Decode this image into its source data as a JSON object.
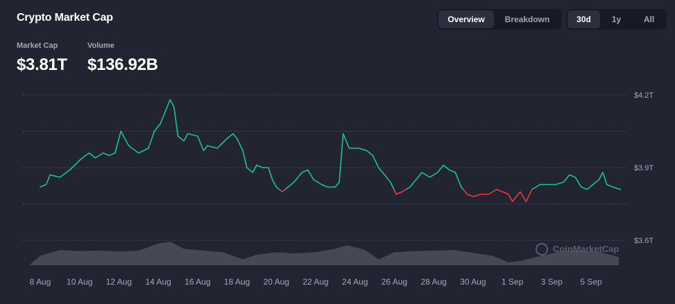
{
  "header": {
    "title": "Crypto Market Cap"
  },
  "view_tabs": [
    {
      "label": "Overview",
      "active": true
    },
    {
      "label": "Breakdown",
      "active": false
    }
  ],
  "range_tabs": [
    {
      "label": "30d",
      "active": true
    },
    {
      "label": "1y",
      "active": false
    },
    {
      "label": "All",
      "active": false
    }
  ],
  "stats": {
    "market_cap": {
      "label": "Market Cap",
      "value": "$3.81T"
    },
    "volume": {
      "label": "Volume",
      "value": "$136.92B"
    }
  },
  "watermark": "CoinMarketCap",
  "colors": {
    "background": "#222531",
    "up": "#16c784",
    "down": "#ea3943",
    "volume": "#4a4e5a",
    "grid": "#6b7080",
    "label": "#a1a7bb"
  },
  "chart_data": {
    "type": "line",
    "title": "",
    "xlabel": "",
    "ylabel": "",
    "ylim": [
      3.6,
      4.2
    ],
    "y_ticks": [
      {
        "value": 4.2,
        "label": "$4.2T"
      },
      {
        "value": 3.9,
        "label": "$3.9T"
      },
      {
        "value": 3.6,
        "label": "$3.6T"
      }
    ],
    "dotted_gridlines": [
      4.2,
      4.05,
      3.9,
      3.75,
      3.6
    ],
    "baseline_value": 3.81,
    "x_ticks": [
      {
        "day": 8,
        "label": "8 Aug"
      },
      {
        "day": 10,
        "label": "10 Aug"
      },
      {
        "day": 12,
        "label": "12 Aug"
      },
      {
        "day": 14,
        "label": "14 Aug"
      },
      {
        "day": 16,
        "label": "16 Aug"
      },
      {
        "day": 18,
        "label": "18 Aug"
      },
      {
        "day": 20,
        "label": "20 Aug"
      },
      {
        "day": 22,
        "label": "22 Aug"
      },
      {
        "day": 24,
        "label": "24 Aug"
      },
      {
        "day": 26,
        "label": "26 Aug"
      },
      {
        "day": 28,
        "label": "28 Aug"
      },
      {
        "day": 30,
        "label": "30 Aug"
      },
      {
        "day": 32,
        "label": "1 Sep"
      },
      {
        "day": 34,
        "label": "3 Sep"
      },
      {
        "day": 36,
        "label": "5 Sep"
      }
    ],
    "series": [
      {
        "values": [
          [
            8.0,
            3.82
          ],
          [
            8.3,
            3.83
          ],
          [
            8.5,
            3.87
          ],
          [
            9.0,
            3.86
          ],
          [
            9.5,
            3.89
          ],
          [
            10.0,
            3.93
          ],
          [
            10.3,
            3.95
          ],
          [
            10.5,
            3.96
          ],
          [
            10.8,
            3.94
          ],
          [
            11.2,
            3.96
          ],
          [
            11.5,
            3.95
          ],
          [
            11.8,
            3.96
          ],
          [
            12.1,
            4.05
          ],
          [
            12.5,
            3.99
          ],
          [
            13.0,
            3.96
          ],
          [
            13.5,
            3.98
          ],
          [
            13.8,
            4.05
          ],
          [
            14.1,
            4.08
          ],
          [
            14.3,
            4.12
          ],
          [
            14.5,
            4.16
          ],
          [
            14.6,
            4.18
          ],
          [
            14.8,
            4.15
          ],
          [
            15.0,
            4.03
          ],
          [
            15.3,
            4.01
          ],
          [
            15.5,
            4.04
          ],
          [
            16.0,
            4.03
          ],
          [
            16.3,
            3.97
          ],
          [
            16.5,
            3.99
          ],
          [
            17.0,
            3.98
          ],
          [
            17.5,
            4.02
          ],
          [
            17.8,
            4.04
          ],
          [
            18.0,
            4.02
          ],
          [
            18.3,
            3.97
          ],
          [
            18.5,
            3.9
          ],
          [
            18.8,
            3.88
          ],
          [
            19.0,
            3.91
          ],
          [
            19.3,
            3.9
          ],
          [
            19.6,
            3.9
          ],
          [
            19.8,
            3.85
          ],
          [
            20.0,
            3.82
          ],
          [
            20.3,
            3.8
          ],
          [
            20.6,
            3.82
          ],
          [
            20.9,
            3.84
          ],
          [
            21.3,
            3.88
          ],
          [
            21.6,
            3.89
          ],
          [
            21.9,
            3.85
          ],
          [
            22.3,
            3.83
          ],
          [
            22.6,
            3.82
          ],
          [
            23.0,
            3.82
          ],
          [
            23.2,
            3.84
          ],
          [
            23.4,
            4.04
          ],
          [
            23.7,
            3.98
          ],
          [
            24.2,
            3.98
          ],
          [
            24.6,
            3.97
          ],
          [
            24.9,
            3.95
          ],
          [
            25.2,
            3.9
          ],
          [
            25.5,
            3.87
          ],
          [
            25.8,
            3.84
          ],
          [
            26.1,
            3.79
          ],
          [
            26.4,
            3.8
          ],
          [
            26.8,
            3.82
          ],
          [
            27.1,
            3.85
          ],
          [
            27.4,
            3.88
          ],
          [
            27.8,
            3.86
          ],
          [
            28.2,
            3.88
          ],
          [
            28.5,
            3.91
          ],
          [
            28.8,
            3.89
          ],
          [
            29.1,
            3.88
          ],
          [
            29.4,
            3.82
          ],
          [
            29.7,
            3.79
          ],
          [
            30.0,
            3.78
          ],
          [
            30.4,
            3.79
          ],
          [
            30.8,
            3.79
          ],
          [
            31.2,
            3.81
          ],
          [
            31.5,
            3.8
          ],
          [
            31.8,
            3.79
          ],
          [
            32.0,
            3.76
          ],
          [
            32.4,
            3.8
          ],
          [
            32.7,
            3.76
          ],
          [
            33.0,
            3.81
          ],
          [
            33.4,
            3.83
          ],
          [
            33.8,
            3.83
          ],
          [
            34.2,
            3.83
          ],
          [
            34.6,
            3.84
          ],
          [
            34.9,
            3.87
          ],
          [
            35.2,
            3.86
          ],
          [
            35.5,
            3.82
          ],
          [
            35.8,
            3.81
          ],
          [
            36.1,
            3.83
          ],
          [
            36.4,
            3.85
          ],
          [
            36.6,
            3.88
          ],
          [
            36.8,
            3.83
          ],
          [
            37.1,
            3.82
          ],
          [
            37.5,
            3.81
          ]
        ]
      }
    ],
    "volume_profile": [
      [
        8.0,
        0.4
      ],
      [
        9.0,
        0.65
      ],
      [
        10.0,
        0.6
      ],
      [
        11.0,
        0.62
      ],
      [
        12.0,
        0.58
      ],
      [
        13.0,
        0.62
      ],
      [
        14.0,
        0.92
      ],
      [
        14.6,
        1.0
      ],
      [
        15.3,
        0.7
      ],
      [
        16.3,
        0.62
      ],
      [
        17.3,
        0.55
      ],
      [
        18.3,
        0.25
      ],
      [
        19.0,
        0.45
      ],
      [
        20.0,
        0.55
      ],
      [
        21.0,
        0.5
      ],
      [
        22.0,
        0.55
      ],
      [
        23.0,
        0.7
      ],
      [
        23.6,
        0.85
      ],
      [
        24.5,
        0.65
      ],
      [
        25.2,
        0.25
      ],
      [
        26.0,
        0.55
      ],
      [
        27.0,
        0.6
      ],
      [
        28.0,
        0.62
      ],
      [
        29.0,
        0.65
      ],
      [
        29.8,
        0.55
      ],
      [
        31.0,
        0.4
      ],
      [
        31.8,
        0.12
      ],
      [
        32.5,
        0.2
      ],
      [
        33.5,
        0.4
      ],
      [
        34.5,
        0.6
      ],
      [
        35.5,
        0.62
      ],
      [
        36.5,
        0.55
      ],
      [
        37.5,
        0.35
      ]
    ]
  }
}
